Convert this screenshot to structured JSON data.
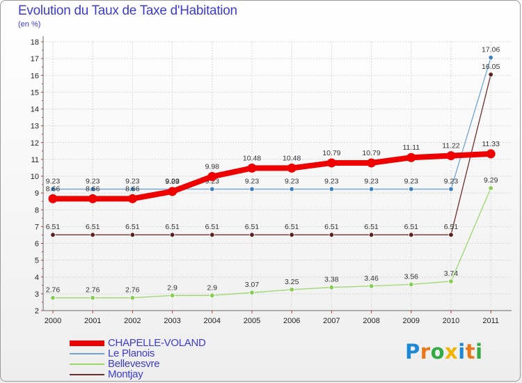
{
  "title": "Evolution du Taux de Taxe d'Habitation",
  "unit": "(en %)",
  "logo": {
    "text": "Proxiti",
    "letters": [
      "P",
      "r",
      "o",
      "x",
      "i",
      "t",
      "i"
    ],
    "colors": [
      "#1e88d4",
      "#e8791a",
      "#33aa44",
      "#f2b400",
      "#1e88d4",
      "#e8791a",
      "#33aa44"
    ]
  },
  "chart_data": {
    "type": "line",
    "title": "Evolution du Taux de Taxe d'Habitation",
    "ylabel": "(en %)",
    "xlabel": "",
    "categories": [
      "2000",
      "2001",
      "2002",
      "2003",
      "2004",
      "2005",
      "2006",
      "2007",
      "2008",
      "2009",
      "2010",
      "2011"
    ],
    "ylim": [
      2,
      18
    ],
    "yticks": [
      "2",
      "3",
      "4",
      "5",
      "6",
      "7",
      "8",
      "9",
      "10",
      "11",
      "12",
      "13",
      "14",
      "15",
      "16",
      "17",
      "18"
    ],
    "grid": true,
    "series": [
      {
        "name": "Le Planois",
        "color": "#6fa3cf",
        "marker_color": "#3f80c0",
        "values": [
          9.23,
          9.23,
          9.23,
          9.23,
          9.23,
          9.23,
          9.23,
          9.23,
          9.23,
          9.23,
          9.23,
          17.06
        ],
        "labels": [
          "9.23",
          "9.23",
          "9.23",
          "9.23",
          "9.23",
          "9.23",
          "9.23",
          "9.23",
          "9.23",
          "9.23",
          "9.23",
          "17.06"
        ]
      },
      {
        "name": "Montjay",
        "color": "#6e2d2d",
        "marker_color": "#5a1f1f",
        "values": [
          6.51,
          6.51,
          6.51,
          6.51,
          6.51,
          6.51,
          6.51,
          6.51,
          6.51,
          6.51,
          6.51,
          16.05
        ],
        "labels": [
          "6.51",
          "6.51",
          "6.51",
          "6.51",
          "6.51",
          "6.51",
          "6.51",
          "6.51",
          "6.51",
          "6.51",
          "6.51",
          "16.05"
        ]
      },
      {
        "name": "Bellevesvre",
        "color": "#9ad86a",
        "marker_color": "#88cc55",
        "values": [
          2.76,
          2.76,
          2.76,
          2.9,
          2.9,
          3.07,
          3.25,
          3.38,
          3.46,
          3.56,
          3.74,
          9.29
        ],
        "labels": [
          "2.76",
          "2.76",
          "2.76",
          "2.9",
          "2.9",
          "3.07",
          "3.25",
          "3.38",
          "3.46",
          "3.56",
          "3.74",
          "9.29"
        ]
      },
      {
        "name": "CHAPELLE-VOLAND",
        "color": "#ee0000",
        "marker_color": "#ee0000",
        "values": [
          8.66,
          8.66,
          8.66,
          9.09,
          9.98,
          10.48,
          10.48,
          10.79,
          10.79,
          11.11,
          11.22,
          11.33
        ],
        "labels": [
          "8.66",
          "8.66",
          "8.66",
          "9.09",
          "9.98",
          "10.48",
          "10.48",
          "10.79",
          "10.79",
          "11.11",
          "11.22",
          "11.33"
        ]
      }
    ],
    "legend": {
      "position": "bottom-left",
      "entries": [
        {
          "name": "CHAPELLE-VOLAND",
          "color": "#ee0000",
          "thick": true
        },
        {
          "name": "Le Planois",
          "color": "#6fa3cf",
          "thick": false
        },
        {
          "name": "Bellevesvre",
          "color": "#9ad86a",
          "thick": false
        },
        {
          "name": "Montjay",
          "color": "#6e2d2d",
          "thick": false
        }
      ]
    }
  }
}
